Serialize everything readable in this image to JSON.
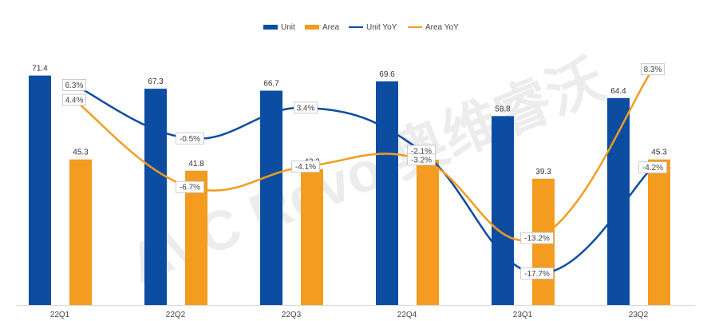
{
  "chart_data": {
    "type": "bar",
    "categories": [
      "22Q1",
      "22Q2",
      "22Q3",
      "22Q4",
      "23Q1",
      "23Q2"
    ],
    "series": [
      {
        "name": "Unit",
        "kind": "bar",
        "axis": "left",
        "values": [
          71.4,
          67.3,
          66.7,
          69.6,
          58.8,
          64.4
        ],
        "labels": [
          "71.4",
          "67.3",
          "66.7",
          "69.6",
          "58.8",
          "64.4"
        ]
      },
      {
        "name": "Area",
        "kind": "bar",
        "axis": "left",
        "values": [
          45.3,
          41.8,
          42.3,
          45.2,
          39.3,
          45.3
        ],
        "labels": [
          "45.3",
          "41.8",
          "42.3",
          "45.2",
          "39.3",
          "45.3"
        ]
      },
      {
        "name": "Unit YoY",
        "kind": "line",
        "axis": "right",
        "values": [
          6.3,
          -0.5,
          3.4,
          -2.1,
          -17.7,
          -4.2
        ],
        "labels": [
          "6.3%",
          "-0.5%",
          "3.4%",
          "-2.1%",
          "-17.7%",
          "-4.2%"
        ]
      },
      {
        "name": "Area YoY",
        "kind": "line",
        "axis": "right",
        "values": [
          4.4,
          -6.7,
          -4.1,
          -3.2,
          -13.2,
          8.3
        ],
        "labels": [
          "4.4%",
          "-6.7%",
          "-4.1%",
          "-3.2%",
          "-13.2%",
          "8.3%"
        ]
      }
    ],
    "ylim": [
      0,
      80
    ],
    "y2lim": [
      -20,
      10
    ],
    "legend_position": "top-center",
    "grid": false
  },
  "colors": {
    "unit": "#0D4DA1",
    "area": "#F39C1F",
    "axis": "#D9D9D9",
    "label_box_border": "#BFBFBF"
  },
  "watermark": "AVC Revo 奥维睿沃"
}
